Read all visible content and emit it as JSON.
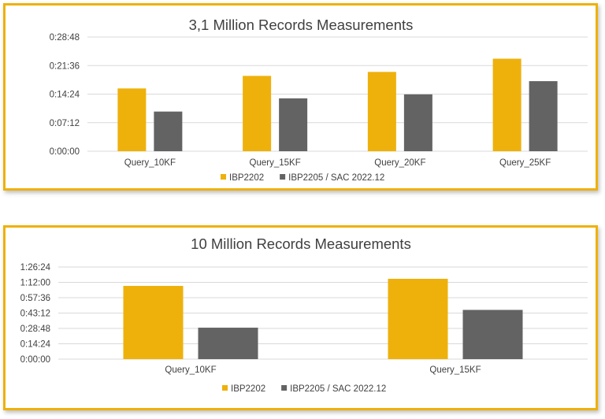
{
  "chart_data": [
    {
      "type": "bar",
      "title": "3,1 Million Records Measurements",
      "categories": [
        "Query_10KF",
        "Query_15KF",
        "Query_20KF",
        "Query_25KF"
      ],
      "series": [
        {
          "name": "IBP2202",
          "color": "#eeb10c",
          "values": [
            "0:15:50",
            "0:19:00",
            "0:20:00",
            "0:23:20"
          ]
        },
        {
          "name": "IBP2205 / SAC 2022.12",
          "color": "#636363",
          "values": [
            "0:10:00",
            "0:13:20",
            "0:14:20",
            "0:17:40"
          ]
        }
      ],
      "yticks": [
        "0:00:00",
        "0:07:12",
        "0:14:24",
        "0:21:36",
        "0:28:48"
      ],
      "ylim": [
        "0:00:00",
        "0:28:48"
      ],
      "xlabel": "",
      "ylabel": "",
      "grid": true,
      "legend": "bottom"
    },
    {
      "type": "bar",
      "title": "10 Million Records Measurements",
      "categories": [
        "Query_10KF",
        "Query_15KF"
      ],
      "series": [
        {
          "name": "IBP2202",
          "color": "#eeb10c",
          "values": [
            "1:08:40",
            "1:15:20"
          ]
        },
        {
          "name": "IBP2205 / SAC 2022.12",
          "color": "#636363",
          "values": [
            "0:29:30",
            "0:46:10"
          ]
        }
      ],
      "yticks": [
        "0:00:00",
        "0:14:24",
        "0:28:48",
        "0:43:12",
        "0:57:36",
        "1:12:00",
        "1:26:24"
      ],
      "ylim": [
        "0:00:00",
        "1:26:24"
      ],
      "xlabel": "",
      "ylabel": "",
      "grid": true,
      "legend": "bottom"
    }
  ]
}
